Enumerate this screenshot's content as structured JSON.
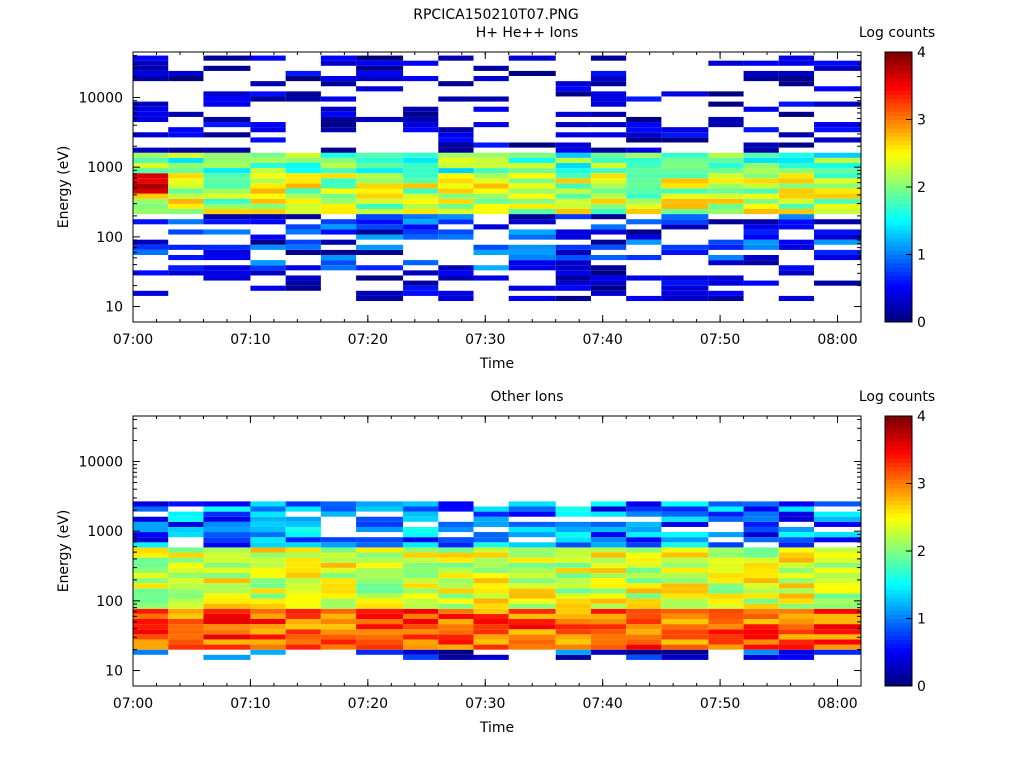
{
  "figure_title": "RPCICA150210T07.PNG",
  "chart_data": [
    {
      "type": "heatmap",
      "title": "H+ He++ Ions",
      "xlabel": "Time",
      "ylabel": "Energy (eV)",
      "colorbar_label": "Log counts",
      "colorbar_range": [
        0,
        4
      ],
      "colorbar_ticks": [
        "0",
        "1",
        "2",
        "3",
        "4"
      ],
      "y_scale": "log",
      "ylim": [
        6,
        45000
      ],
      "xlim": [
        "07:00",
        "08:02"
      ],
      "x_ticks": [
        "07:00",
        "07:10",
        "07:20",
        "07:30",
        "07:40",
        "07:50",
        "08:00"
      ],
      "y_ticks": [
        "10",
        "100",
        "1000",
        "10000"
      ],
      "time_bins": [
        "07:00",
        "07:03",
        "07:06",
        "07:10",
        "07:13",
        "07:16",
        "07:19",
        "07:23",
        "07:26",
        "07:29",
        "07:32",
        "07:36",
        "07:39",
        "07:42",
        "07:45",
        "07:49",
        "07:52",
        "07:55",
        "07:58"
      ],
      "approx_values": {
        "peak_band_energy_eV": [
          200,
          1600
        ],
        "peak": {
          "time": "07:01",
          "energy_eV": 600,
          "log_counts": 3.9
        }
      }
    },
    {
      "type": "heatmap",
      "title": "Other Ions",
      "xlabel": "Time",
      "ylabel": "Energy (eV)",
      "colorbar_label": "Log counts",
      "colorbar_range": [
        0,
        4
      ],
      "colorbar_ticks": [
        "0",
        "1",
        "2",
        "3",
        "4"
      ],
      "y_scale": "log",
      "ylim": [
        6,
        45000
      ],
      "xlim": [
        "07:00",
        "08:02"
      ],
      "x_ticks": [
        "07:00",
        "07:10",
        "07:20",
        "07:30",
        "07:40",
        "07:50",
        "08:00"
      ],
      "y_ticks": [
        "10",
        "100",
        "1000",
        "10000"
      ],
      "time_bins": [
        "07:00",
        "07:03",
        "07:06",
        "07:10",
        "07:13",
        "07:16",
        "07:19",
        "07:23",
        "07:26",
        "07:29",
        "07:32",
        "07:36",
        "07:39",
        "07:42",
        "07:45",
        "07:49",
        "07:52",
        "07:55",
        "07:58"
      ],
      "approx_values": {
        "peak_band_energy_eV": [
          20,
          80
        ],
        "max_log_counts": 3.6
      }
    }
  ]
}
